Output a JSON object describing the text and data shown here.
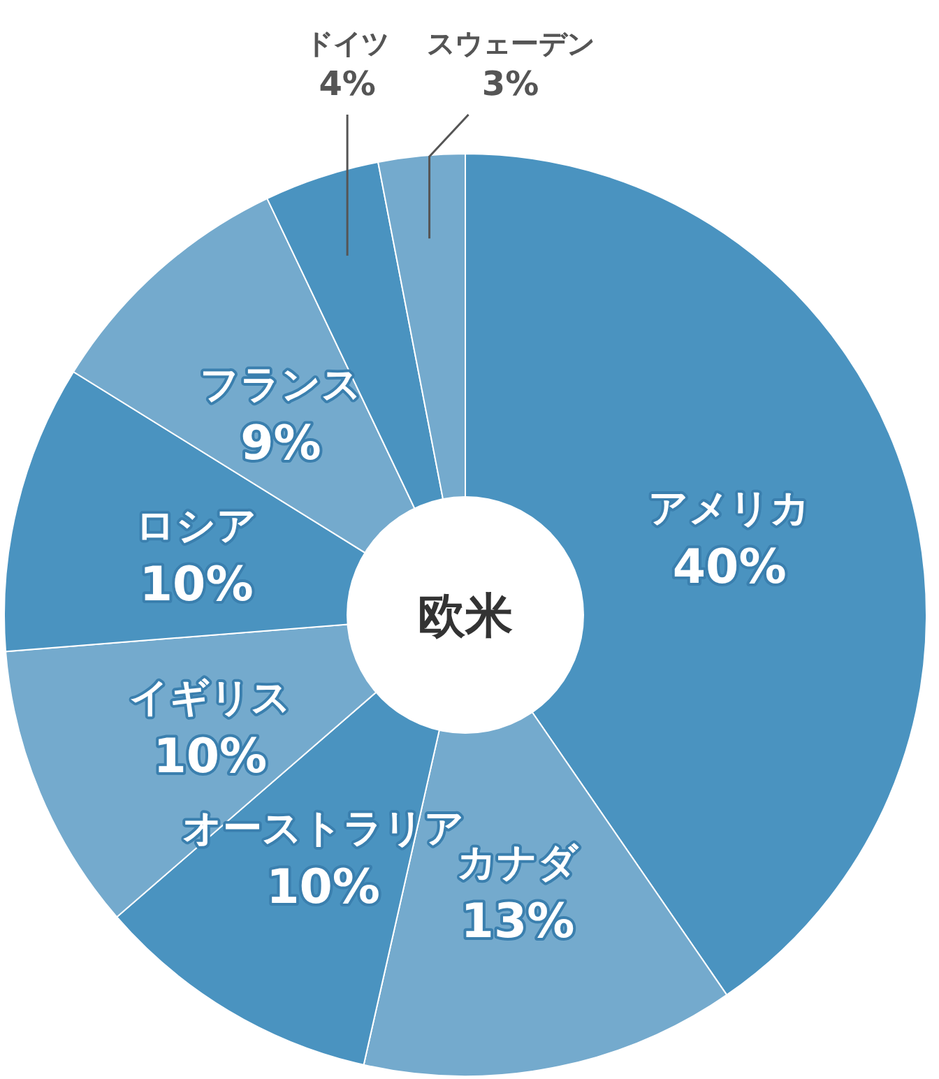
{
  "chart_data": {
    "type": "donut",
    "title": "欧米",
    "categories": [
      "アメリカ",
      "カナダ",
      "オーストラリア",
      "イギリス",
      "ロシア",
      "フランス",
      "ドイツ",
      "スウェーデン"
    ],
    "values": [
      40,
      13,
      10,
      10,
      10,
      9,
      4,
      3
    ],
    "value_labels": [
      "40%",
      "13%",
      "10%",
      "10%",
      "10%",
      "9%",
      "4%",
      "3%"
    ],
    "colors": [
      "#4a93c0",
      "#74aacd",
      "#4a93c0",
      "#74aacd",
      "#4a93c0",
      "#74aacd",
      "#4a93c0",
      "#74aacd"
    ],
    "legend": false
  }
}
